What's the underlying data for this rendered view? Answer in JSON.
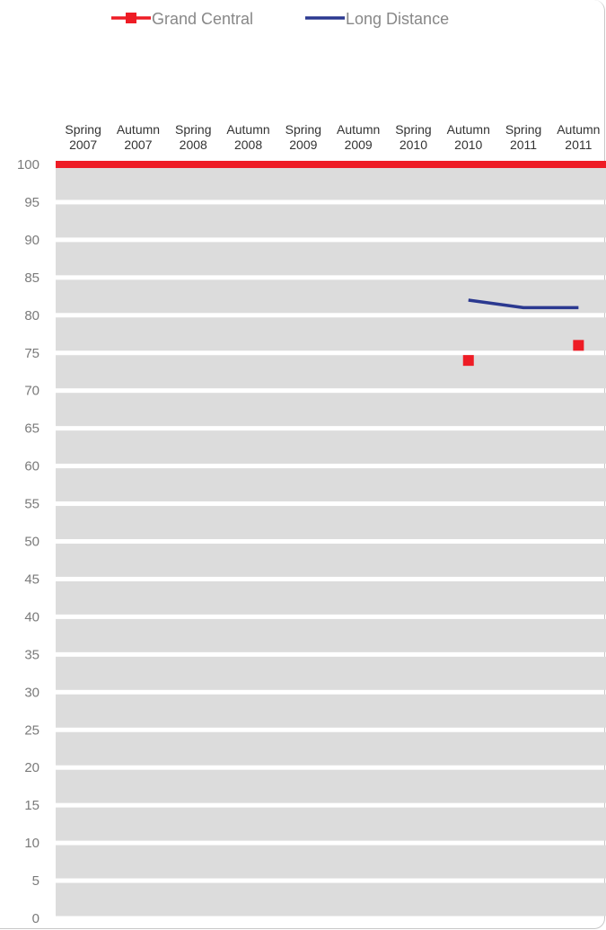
{
  "chart_data": {
    "type": "line",
    "categories": [
      "Spring 2007",
      "Autumn 2007",
      "Spring 2008",
      "Autumn 2008",
      "Spring 2009",
      "Autumn 2009",
      "Spring 2010",
      "Autumn 2010",
      "Spring 2011",
      "Autumn 2011"
    ],
    "category_lines": [
      [
        "Spring",
        "2007"
      ],
      [
        "Autumn",
        "2007"
      ],
      [
        "Spring",
        "2008"
      ],
      [
        "Autumn",
        "2008"
      ],
      [
        "Spring",
        "2009"
      ],
      [
        "Autumn",
        "2009"
      ],
      [
        "Spring",
        "2010"
      ],
      [
        "Autumn",
        "2010"
      ],
      [
        "Spring",
        "2011"
      ],
      [
        "Autumn",
        "2011"
      ]
    ],
    "series": [
      {
        "name": "Grand Central",
        "style": "markers",
        "color": "#ee1c25",
        "values": [
          null,
          null,
          null,
          null,
          null,
          null,
          null,
          74,
          null,
          76
        ]
      },
      {
        "name": "Long Distance",
        "style": "line",
        "color": "#2b3990",
        "values": [
          null,
          null,
          null,
          null,
          null,
          null,
          null,
          82,
          81,
          81
        ]
      }
    ],
    "ylim": [
      0,
      100
    ],
    "yticks": [
      0,
      5,
      10,
      15,
      20,
      25,
      30,
      35,
      40,
      45,
      50,
      55,
      60,
      65,
      70,
      75,
      80,
      85,
      90,
      95,
      100
    ],
    "x_axis_position": "top",
    "legend_position": "top",
    "grid": true,
    "band_color": "#dcdcdc",
    "top_line_color": "#ee1c25"
  }
}
